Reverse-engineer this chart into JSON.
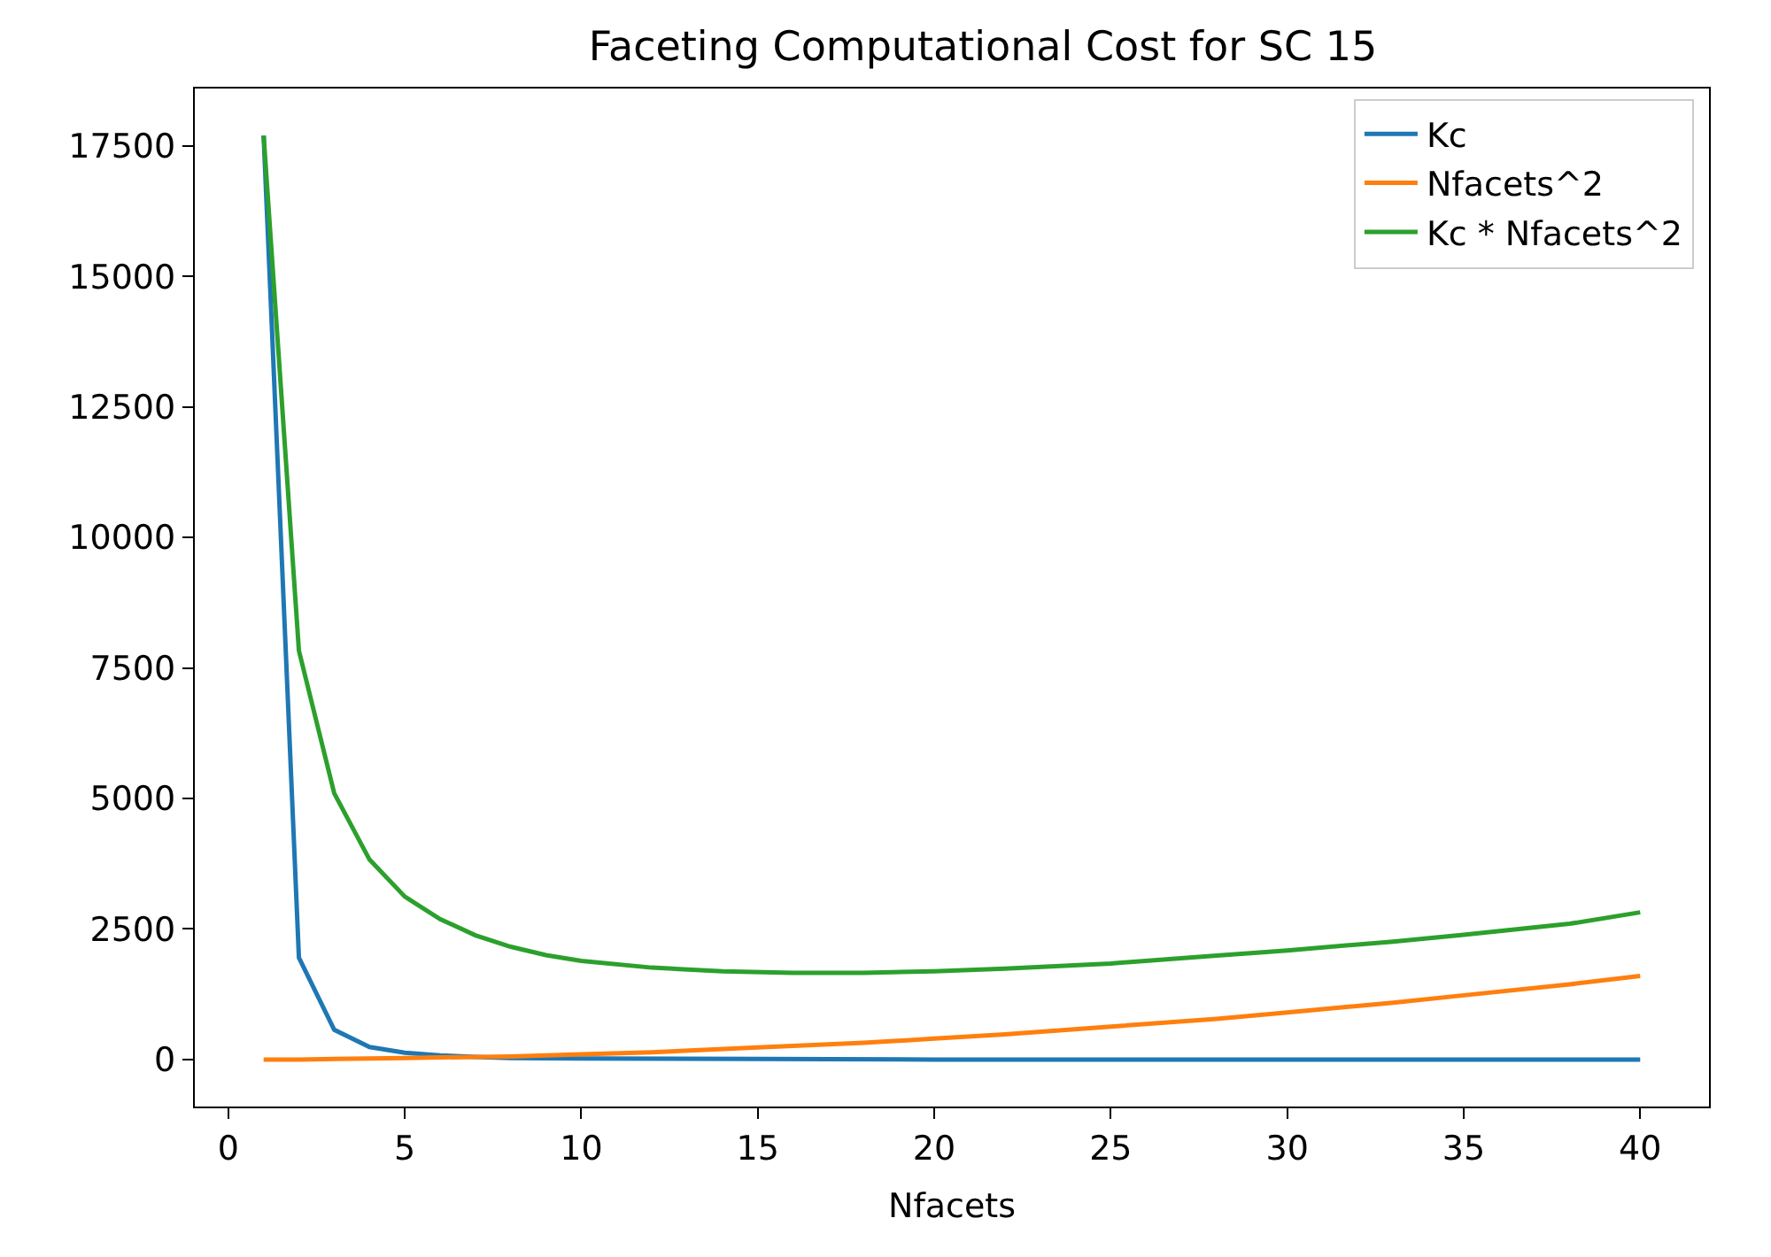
{
  "chart_data": {
    "type": "line",
    "title": "Faceting Computational Cost for SC 15",
    "xlabel": "Nfacets",
    "xlim": [
      -0.95,
      41.95
    ],
    "xticks": [
      0,
      5,
      10,
      15,
      20,
      25,
      30,
      35,
      40
    ],
    "ylim": [
      -900,
      18600
    ],
    "yticks": [
      0,
      2500,
      5000,
      7500,
      10000,
      12500,
      15000,
      17500
    ],
    "legend": "top right",
    "marker": "none",
    "line_style": "solid",
    "series": [
      {
        "name": "Kc",
        "color": "#1f77b4",
        "x": [
          1,
          2,
          3,
          4,
          5,
          6,
          7,
          8,
          10,
          15,
          20,
          30,
          40
        ],
        "values": [
          17700,
          1950,
          570,
          240,
          130,
          80,
          50,
          30,
          20,
          10,
          0,
          0,
          0
        ]
      },
      {
        "name": "Nfacets^2",
        "color": "#ff7f0e",
        "x": [
          1,
          2,
          3,
          4,
          5,
          6,
          8,
          10,
          12,
          15,
          18,
          20,
          22,
          25,
          28,
          30,
          33,
          35,
          38,
          40
        ],
        "values": [
          0,
          0,
          10,
          20,
          30,
          40,
          60,
          100,
          140,
          230,
          320,
          400,
          480,
          630,
          780,
          900,
          1090,
          1230,
          1440,
          1600
        ]
      },
      {
        "name": "Kc * Nfacets^2",
        "color": "#2ca02c",
        "x": [
          1,
          2,
          3,
          4,
          5,
          6,
          7,
          8,
          9,
          10,
          12,
          14,
          16,
          18,
          20,
          22,
          25,
          28,
          30,
          33,
          35,
          38,
          40
        ],
        "values": [
          17700,
          7830,
          5100,
          3830,
          3120,
          2690,
          2380,
          2160,
          2000,
          1890,
          1760,
          1690,
          1660,
          1660,
          1690,
          1740,
          1840,
          1990,
          2090,
          2260,
          2390,
          2600,
          2820
        ]
      }
    ]
  }
}
